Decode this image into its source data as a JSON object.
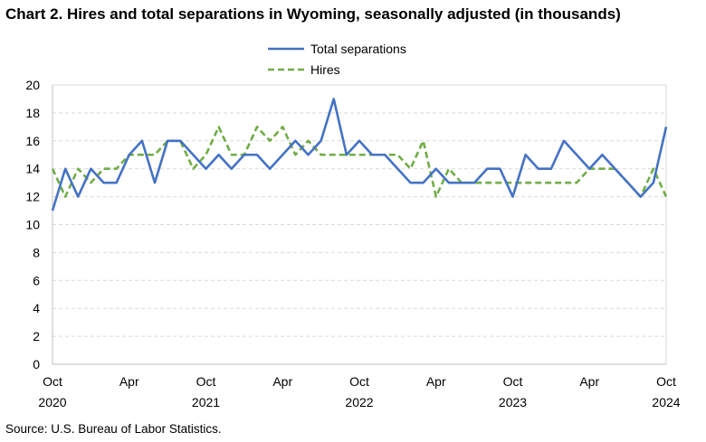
{
  "title": "Chart 2. Hires and total separations in Wyoming, seasonally adjusted (in thousands)",
  "source": "Source: U.S. Bureau of Labor Statistics.",
  "chart_data": {
    "type": "line",
    "title": "Chart 2. Hires and total separations in Wyoming, seasonally adjusted (in thousands)",
    "xlabel": "",
    "ylabel": "",
    "ylim": [
      0,
      20
    ],
    "yticks": [
      0,
      2,
      4,
      6,
      8,
      10,
      12,
      14,
      16,
      18,
      20
    ],
    "grid": true,
    "legend_position": "top-center",
    "x_start": "2020-10",
    "x_end": "2024-10",
    "x_tick_labels": [
      {
        "month": "Oct",
        "year": "2020",
        "index": 0
      },
      {
        "month": "Apr",
        "year": "",
        "index": 6
      },
      {
        "month": "Oct",
        "year": "2021",
        "index": 12
      },
      {
        "month": "Apr",
        "year": "",
        "index": 18
      },
      {
        "month": "Oct",
        "year": "2022",
        "index": 24
      },
      {
        "month": "Apr",
        "year": "",
        "index": 30
      },
      {
        "month": "Oct",
        "year": "2023",
        "index": 36
      },
      {
        "month": "Apr",
        "year": "",
        "index": 42
      },
      {
        "month": "Oct",
        "year": "2024",
        "index": 48
      }
    ],
    "series": [
      {
        "name": "Total separations",
        "color": "#4472C4",
        "style": "solid",
        "values": [
          11,
          14,
          12,
          14,
          13,
          13,
          15,
          16,
          13,
          16,
          16,
          15,
          14,
          15,
          14,
          15,
          15,
          14,
          15,
          16,
          15,
          16,
          19,
          15,
          16,
          15,
          15,
          14,
          13,
          13,
          14,
          13,
          13,
          13,
          14,
          14,
          12,
          15,
          14,
          14,
          16,
          15,
          14,
          15,
          14,
          13,
          12,
          13,
          17
        ]
      },
      {
        "name": "Hires",
        "color": "#70AD47",
        "style": "dashed",
        "values": [
          14,
          12,
          14,
          13,
          14,
          14,
          15,
          15,
          15,
          16,
          16,
          14,
          15,
          17,
          15,
          15,
          17,
          16,
          17,
          15,
          16,
          15,
          15,
          15,
          15,
          15,
          15,
          15,
          14,
          16,
          12,
          14,
          13,
          13,
          13,
          13,
          13,
          13,
          13,
          13,
          13,
          13,
          14,
          14,
          14,
          13,
          12,
          14,
          12
        ]
      }
    ]
  }
}
